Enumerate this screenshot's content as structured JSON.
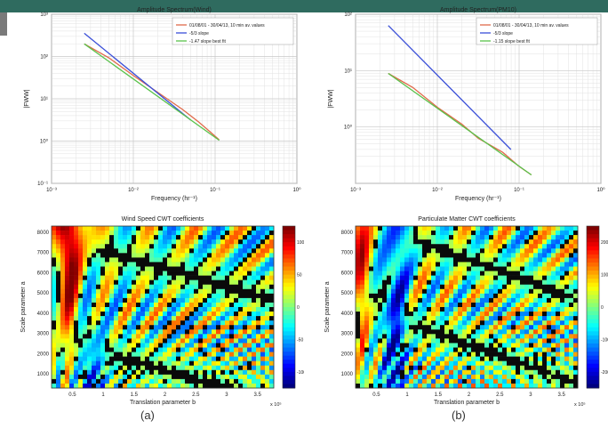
{
  "charts": [
    {
      "type": "line",
      "title": "Amplitude Spectrum(Wind)",
      "xlabel": "Frequency (hr⁻¹)",
      "ylabel": "|FWW|",
      "x_ticks": [
        "10⁻³",
        "10⁻²",
        "10⁻¹",
        "10⁰"
      ],
      "y_ticks": [
        "10³",
        "10²",
        "10¹",
        "10⁰",
        "10⁻¹"
      ],
      "xlog": [
        -3,
        0
      ],
      "ylog": [
        -1,
        3
      ],
      "grid": true,
      "legend": "top-right",
      "series": [
        {
          "name": "01/08/01 - 30/04/13, 10 min av. values",
          "color": "#e06a4a",
          "x": [
            -2.6,
            -2.3,
            -2.0,
            -1.7,
            -1.4,
            -1.2,
            -1.05,
            -0.95
          ],
          "y": [
            2.3,
            1.97,
            1.55,
            1.15,
            0.75,
            0.45,
            0.2,
            0.03
          ]
        },
        {
          "name": "-5/3 slope",
          "color": "#3a4fd8",
          "x": [
            -2.6,
            -1.3
          ],
          "y": [
            2.55,
            0.5
          ]
        },
        {
          "name": "-1.47 slope best fit",
          "color": "#59c24a",
          "x": [
            -2.6,
            -0.95
          ],
          "y": [
            2.3,
            0.02
          ]
        }
      ]
    },
    {
      "type": "line",
      "title": "Amplitude Spectrum(PM10)",
      "xlabel": "Frequency (hr⁻¹)",
      "ylabel": "|FWW|",
      "x_ticks": [
        "10⁻³",
        "10⁻²",
        "10⁻¹",
        "10⁰"
      ],
      "y_ticks": [
        "10²",
        "10¹",
        "10⁰"
      ],
      "xlog": [
        -3,
        0
      ],
      "ylog": [
        -1,
        2
      ],
      "grid": true,
      "legend": "top-right",
      "series": [
        {
          "name": "01/08/01 - 30/04/13, 10 min av. values",
          "color": "#e06a4a",
          "x": [
            -2.6,
            -2.3,
            -2.0,
            -1.7,
            -1.5,
            -1.2,
            -1.0,
            -0.85
          ],
          "y": [
            0.95,
            0.7,
            0.35,
            0.05,
            -0.2,
            -0.45,
            -0.7,
            -0.85
          ]
        },
        {
          "name": "-5/3 slope",
          "color": "#3a4fd8",
          "x": [
            -2.6,
            -1.1
          ],
          "y": [
            1.8,
            -0.4
          ]
        },
        {
          "name": "-1.15 slope best fit",
          "color": "#59c24a",
          "x": [
            -2.6,
            -0.85
          ],
          "y": [
            0.95,
            -0.85
          ]
        }
      ]
    }
  ],
  "heatmaps": [
    {
      "type": "heatmap",
      "title": "Wind Speed CWT coefficients",
      "xlabel": "Translation parameter b",
      "ylabel": "Scale parameter a",
      "x_ticks": [
        "0.5",
        "1",
        "1.5",
        "2",
        "2.5",
        "3",
        "3.5"
      ],
      "y_ticks": [
        "8000",
        "7000",
        "6000",
        "5000",
        "4000",
        "3000",
        "2000",
        "1000"
      ],
      "x_exp": "x 10⁵",
      "colorbar": [
        "100",
        "50",
        "0",
        "-50",
        "-100"
      ]
    },
    {
      "type": "heatmap",
      "title": "Particulate Matter CWT coefficients",
      "xlabel": "Translation parameter b",
      "ylabel": "Scale parameter a",
      "x_ticks": [
        "0.5",
        "1",
        "1.5",
        "2",
        "2.5",
        "3",
        "3.5"
      ],
      "y_ticks": [
        "8000",
        "7000",
        "6000",
        "5000",
        "4000",
        "3000",
        "2000",
        "1000"
      ],
      "x_exp": "x 10⁵",
      "colorbar": [
        "2000",
        "1000",
        "0",
        "-1000",
        "-2000"
      ]
    }
  ],
  "captions": [
    "(a)",
    "(b)"
  ]
}
